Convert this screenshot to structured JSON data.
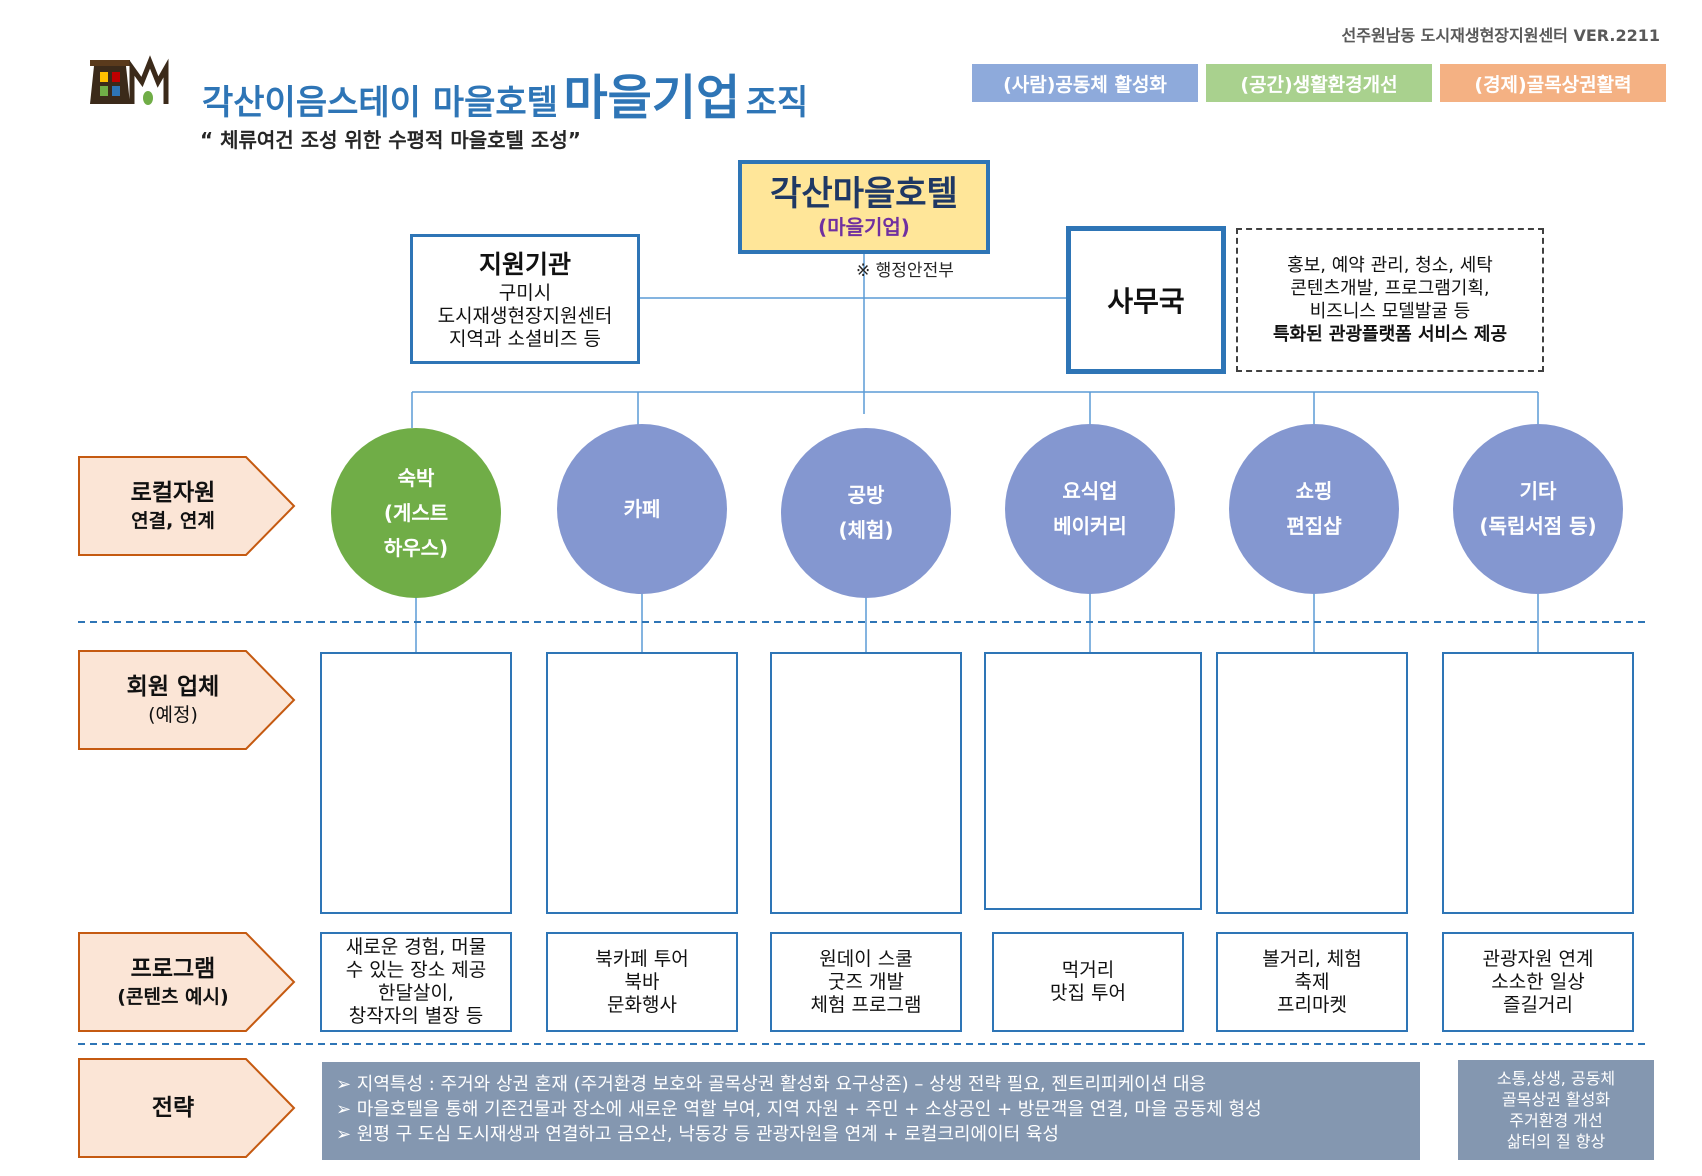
{
  "header": {
    "version": "선주원남동 도시재생현장지원센터 VER.2211",
    "title_part1": "각산이음스테이 마을호텔",
    "title_part2": "마을기업",
    "title_part3": "조직",
    "subtitle": "“ 체류여건 조성  위한 수평적 마을호텔 조성”"
  },
  "badges": [
    {
      "label": "(사람)공동체 활성화",
      "color": "#8eaadb"
    },
    {
      "label": "(공간)생활환경개선",
      "color": "#a9d18e"
    },
    {
      "label": "(경제)골목상권활력",
      "color": "#f4b183"
    }
  ],
  "org": {
    "hq_title": "각산마을호텔",
    "hq_sub": "(마을기업)",
    "ministry_note": "※ 행정안전부",
    "support": {
      "title": "지원기관",
      "lines": [
        "구미시",
        "도시재생현장지원센터",
        "지역과 소셜비즈 등"
      ]
    },
    "office": "사무국",
    "services": [
      "홍보, 예약 관리,  청소, 세탁",
      "콘텐츠개발, 프로그램기획,",
      "비즈니스 모델발굴  등",
      "특화된 관광플랫폼 서비스 제공"
    ]
  },
  "row_labels": {
    "local": {
      "main": "로컬자원",
      "sub": "연결, 연계"
    },
    "members": {
      "main": "회원 업체",
      "sub": "(예정)"
    },
    "programs": {
      "main": "프로그램",
      "sub": "(콘텐츠 예시)"
    },
    "strategy": {
      "main": "전략"
    }
  },
  "units": [
    {
      "lines": [
        "숙박",
        "(게스트",
        "하우스)"
      ],
      "color": "#70ad47",
      "programs": [
        "새로운 경험, 머물",
        "수 있는 장소 제공",
        "한달살이,",
        "창작자의 별장 등"
      ]
    },
    {
      "lines": [
        "카페"
      ],
      "color": "#8497d0",
      "programs": [
        "북카페 투어",
        "북바",
        "문화행사"
      ]
    },
    {
      "lines": [
        "공방",
        "(체험)"
      ],
      "color": "#8497d0",
      "programs": [
        "원데이 스쿨",
        "굿즈 개발",
        "체험 프로그램"
      ]
    },
    {
      "lines": [
        "요식업",
        "베이커리"
      ],
      "color": "#8497d0",
      "programs": [
        "먹거리",
        "맛집 투어"
      ]
    },
    {
      "lines": [
        "쇼핑",
        "편집샵"
      ],
      "color": "#8497d0",
      "programs": [
        "볼거리, 체험",
        "축제",
        "프리마켓"
      ]
    },
    {
      "lines": [
        "기타",
        "(독립서점 등)"
      ],
      "color": "#8497d0",
      "programs": [
        "관광자원 연계",
        "소소한 일상",
        "즐길거리"
      ]
    }
  ],
  "strategy": [
    "➢ 지역특성 : 주거와 상권 혼재 (주거환경 보호와 골목상권 활성화 요구상존) – 상생 전략 필요, 젠트리피케이션 대응",
    "➢ 마을호텔을 통해  기존건물과 장소에 새로운 역할 부여, 지역 자원 + 주민 + 소상공인 + 방문객을 연결, 마을 공동체 형성",
    "➢ 원평 구 도심 도시재생과  연결하고 금오산, 낙동강 등  관광자원을 연계  + 로컬크리에이터 육성"
  ],
  "goals": [
    "소통,상생, 공동체",
    "골목상권 활성화",
    "주거환경 개선",
    "삶터의 질 향상"
  ]
}
